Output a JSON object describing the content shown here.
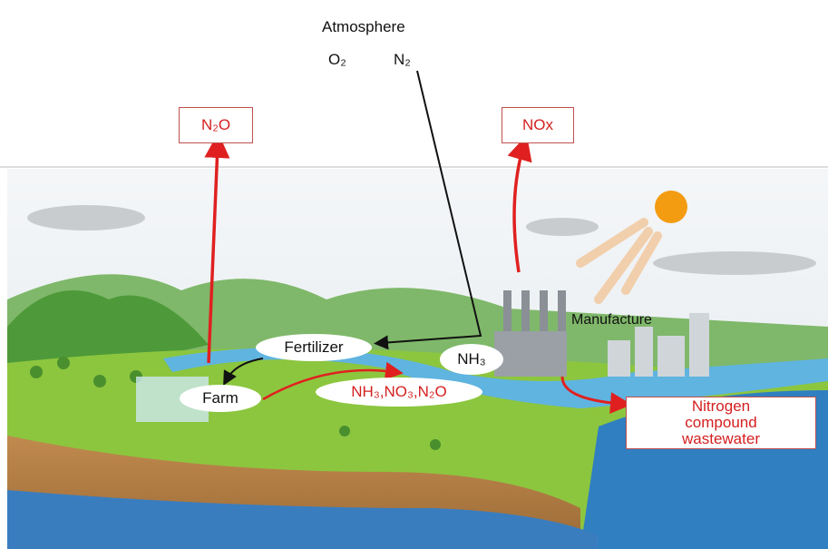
{
  "atmosphere": {
    "title": "Atmosphere",
    "gases": [
      "O₂",
      "N₂"
    ]
  },
  "emissions": [
    "N₂O",
    "NOx"
  ],
  "nodes": {
    "fertilizer": "Fertilizer",
    "farm": "Farm",
    "ammonia": "NH₃",
    "manufacture": "Manufacture",
    "runoff": "NH₃,NO₃,N₂O",
    "wastewater": "Nitrogen compound wastewater"
  }
}
